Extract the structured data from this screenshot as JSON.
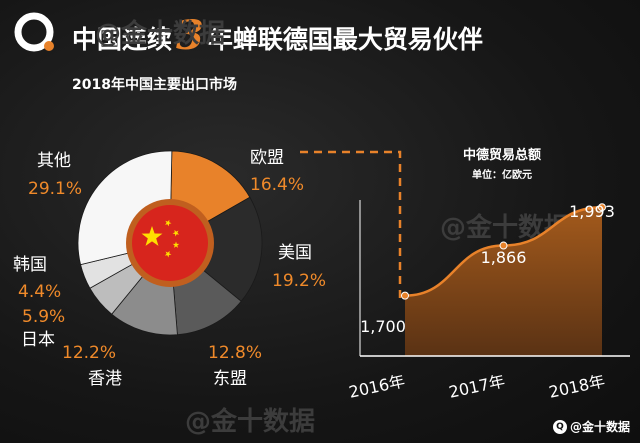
{
  "header": {
    "title_pre": "中国连续",
    "title_num": "3",
    "title_post": "年蝉联德国最大贸易伙伴",
    "subtitle": "2018年中国主要出口市场"
  },
  "watermark": "@金十数据",
  "footer": {
    "brand": "@金十数据"
  },
  "colors": {
    "accent": "#e8822a",
    "background": "#161616"
  },
  "chart_data": [
    {
      "type": "pie",
      "title": "2018年中国主要出口市场",
      "slices": [
        {
          "label": "欧盟",
          "value": 16.4,
          "display": "16.4%",
          "color": "#e8822a"
        },
        {
          "label": "美国",
          "value": 19.2,
          "display": "19.2%",
          "color": "#2b2b2b"
        },
        {
          "label": "东盟",
          "value": 12.8,
          "display": "12.8%",
          "color": "#5a5a5a"
        },
        {
          "label": "香港",
          "value": 12.2,
          "display": "12.2%",
          "color": "#8c8c8c"
        },
        {
          "label": "日本",
          "value": 5.9,
          "display": "5.9%",
          "color": "#bdbdbd"
        },
        {
          "label": "韩国",
          "value": 4.4,
          "display": "4.4%",
          "color": "#e2e2e2"
        },
        {
          "label": "其他",
          "value": 29.1,
          "display": "29.1%",
          "color": "#f7f7f7"
        }
      ]
    },
    {
      "type": "area",
      "title": "中德贸易总额",
      "subtitle": "单位：亿欧元",
      "categories": [
        "2016年",
        "2017年",
        "2018年"
      ],
      "values": [
        1700,
        1866,
        1993
      ],
      "value_labels": [
        "1,700",
        "1,866",
        "1,993"
      ],
      "ylim": [
        1500,
        2050
      ]
    }
  ]
}
